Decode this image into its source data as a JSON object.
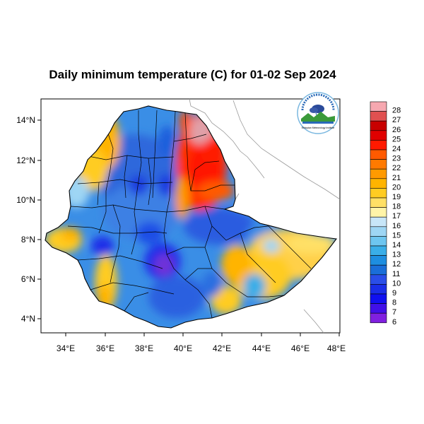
{
  "title": "Daily minimum temperature (C) for 01-02 Sep 2024",
  "map": {
    "x_ticks": [
      "34°E",
      "36°E",
      "38°E",
      "40°E",
      "42°E",
      "44°E",
      "46°E",
      "48°E"
    ],
    "y_ticks": [
      "14°N",
      "12°N",
      "10°N",
      "8°N",
      "6°N",
      "4°N"
    ],
    "lon_range": [
      33,
      48
    ],
    "lat_range": [
      3.2,
      15
    ]
  },
  "colorbar": {
    "labels": [
      "28",
      "27",
      "26",
      "25",
      "24",
      "23",
      "22",
      "21",
      "20",
      "19",
      "18",
      "17",
      "16",
      "15",
      "14",
      "13",
      "12",
      "11",
      "10",
      "9",
      "8",
      "7",
      "6"
    ],
    "colors": [
      "#f6a8b0",
      "#e05050",
      "#c80000",
      "#e00000",
      "#ff1a00",
      "#ff5a00",
      "#ff7a00",
      "#ff9a00",
      "#ffb400",
      "#ffcc22",
      "#ffe066",
      "#fff4a8",
      "#c8e6f8",
      "#9ed6f4",
      "#6ec6f0",
      "#3aaee8",
      "#1e8ee0",
      "#1a6ed8",
      "#2a4ee8",
      "#1a2ee8",
      "#1010f0",
      "#4010e8",
      "#8020e0"
    ]
  },
  "logo": {
    "icon": "ethiopian-meteorology-logo",
    "caption": "Ethiopian Meteorology Institute"
  }
}
